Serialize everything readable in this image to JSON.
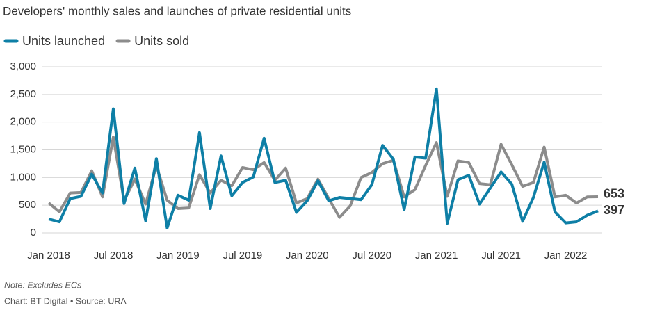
{
  "chart_data": {
    "type": "line",
    "title": "Developers' monthly sales and launches of private residential units",
    "note": "Note: Excludes ECs",
    "source": "Chart: BT Digital • Source: URA",
    "categories": [
      "Jan 2018",
      null,
      null,
      null,
      null,
      null,
      "Jul 2018",
      null,
      null,
      null,
      null,
      null,
      "Jan 2019",
      null,
      null,
      null,
      null,
      null,
      "Jul 2019",
      null,
      null,
      null,
      null,
      null,
      "Jan 2020",
      null,
      null,
      null,
      null,
      null,
      "Jul 2020",
      null,
      null,
      null,
      null,
      null,
      "Jan 2021",
      null,
      null,
      null,
      null,
      null,
      "Jul 2021",
      null,
      null,
      null,
      null,
      null,
      "Jan 2022",
      null,
      null,
      null
    ],
    "series": [
      {
        "name": "Units launched",
        "color": "#0e7fa6",
        "values": [
          250,
          200,
          620,
          660,
          1060,
          720,
          2240,
          530,
          1170,
          220,
          1340,
          90,
          680,
          590,
          1810,
          440,
          1390,
          670,
          910,
          1010,
          1710,
          910,
          950,
          370,
          580,
          940,
          580,
          640,
          620,
          600,
          870,
          1580,
          1330,
          420,
          1370,
          1350,
          2600,
          170,
          960,
          1040,
          520,
          810,
          1100,
          880,
          210,
          640,
          1280,
          380,
          180,
          200,
          320,
          397
        ]
      },
      {
        "name": "Units sold",
        "color": "#8c8c8c",
        "values": [
          540,
          380,
          720,
          730,
          1120,
          650,
          1730,
          580,
          970,
          520,
          1210,
          590,
          440,
          450,
          1050,
          720,
          950,
          850,
          1180,
          1140,
          1270,
          950,
          1170,
          540,
          620,
          970,
          620,
          280,
          490,
          1000,
          1090,
          1250,
          1310,
          650,
          780,
          1220,
          1630,
          660,
          1300,
          1270,
          890,
          870,
          1600,
          1230,
          840,
          910,
          1550,
          650,
          680,
          540,
          650,
          653
        ]
      }
    ],
    "ylim": [
      0,
      3000
    ],
    "yticks": [
      0,
      500,
      {
        "value": 1000,
        "label": "1,000"
      },
      {
        "value": 1500,
        "label": "1,500"
      },
      {
        "value": 2000,
        "label": "2,000"
      },
      {
        "value": 2500,
        "label": "2,500"
      },
      {
        "value": 3000,
        "label": "3,000"
      }
    ],
    "grid": true
  }
}
